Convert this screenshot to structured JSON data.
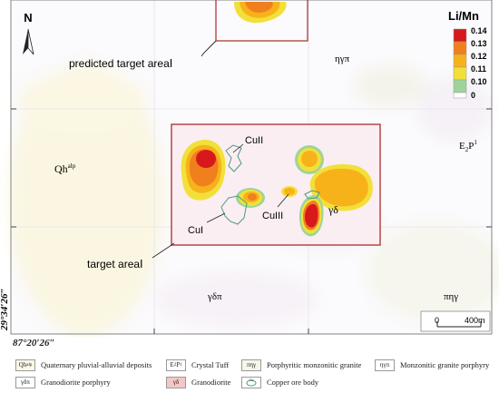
{
  "map": {
    "north_label": "N",
    "lon_label": "87°20′26″",
    "lat_label": "29°34′26″",
    "scale": {
      "start": "0",
      "end": "400m"
    },
    "geo_labels": {
      "eta_gamma_pi": "ηγπ",
      "qh_main": "Qh",
      "qh_sup": "alp",
      "e2p_main": "E",
      "e2p_sub": "2",
      "e2p_p": "P",
      "e2p_sup": "1",
      "gamma_delta": "γδ",
      "gamma_delta_pi": "γδπ",
      "pi_eta_gamma": "πηγ"
    },
    "annotations": {
      "predicted": "predicted target areaⅠ",
      "target": "target areaⅠ",
      "cu1": "CuI",
      "cu2": "CuII",
      "cu3": "CuIII"
    }
  },
  "color_legend": {
    "title": "Li/Mn",
    "stops": [
      {
        "label": "0.14",
        "color": "#d7191c"
      },
      {
        "label": "0.13",
        "color": "#f07f1e"
      },
      {
        "label": "0.12",
        "color": "#f7b21a"
      },
      {
        "label": "0.11",
        "color": "#f2e03a"
      },
      {
        "label": "0.10",
        "color": "#9ed49a"
      },
      {
        "label": "0",
        "color": "#ffffff"
      }
    ]
  },
  "legend": [
    {
      "code": "Qh",
      "code_sup": "alp",
      "label": "Quaternary pluvial-alluvial deposits",
      "fill": "#fbf8e6"
    },
    {
      "code": "E",
      "code_sub": "2",
      "code_rest": "P",
      "code_sup": "1",
      "label": "Crystal Tuff",
      "fill": "#ffffff"
    },
    {
      "code": "πηγ",
      "label": "Porphyritic monzonitic granite",
      "fill": "#f4f7e8"
    },
    {
      "code": "ηγπ",
      "label": "Monzonitic granite porphyry",
      "fill": "#ffffff"
    },
    {
      "code": "γδπ",
      "label": "Granodiorite porphyry",
      "fill": "#ffffff"
    },
    {
      "code": "γδ",
      "label": "Granodiorite",
      "fill": "#f6c6c6"
    },
    {
      "code": "Cu",
      "label": "Copper ore body",
      "fill": "#ffffff"
    }
  ]
}
